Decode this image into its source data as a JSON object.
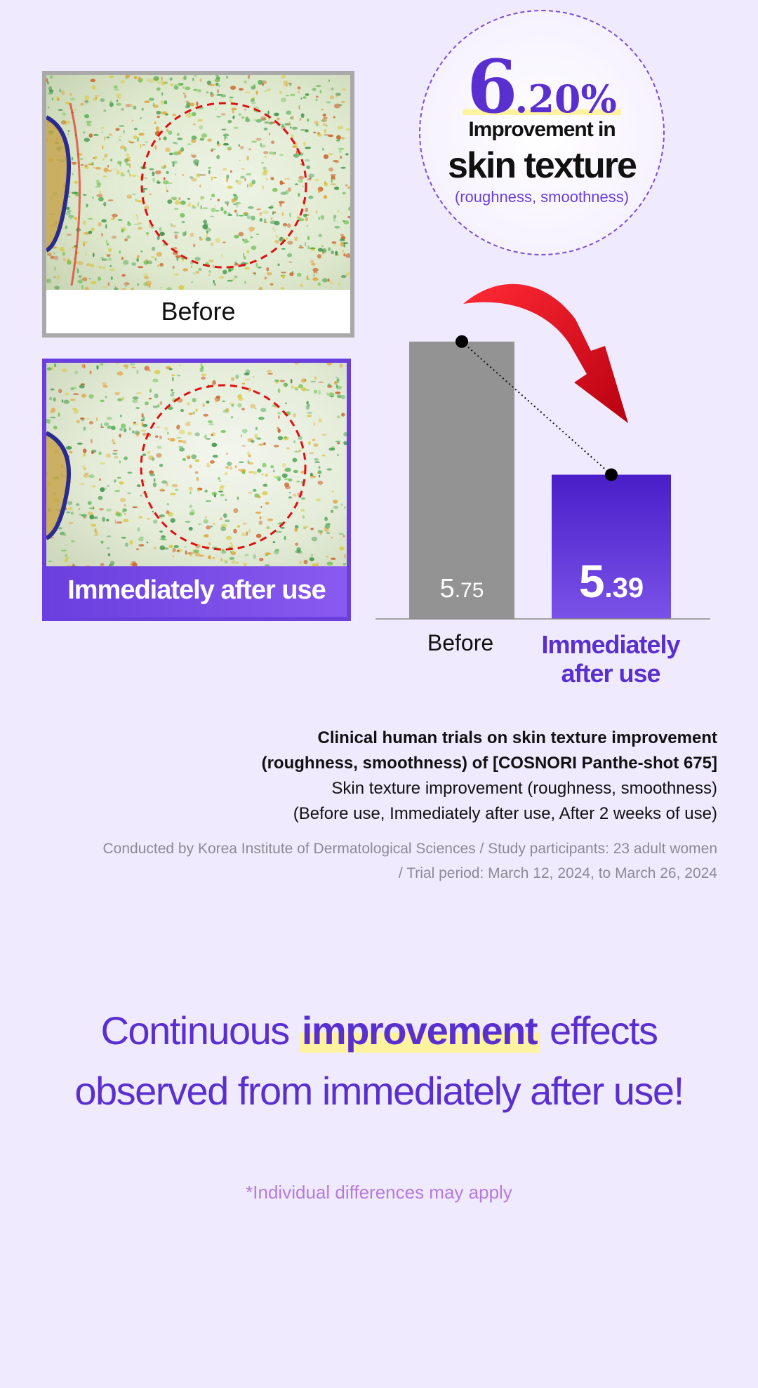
{
  "before_panel": {
    "caption": "Before"
  },
  "after_panel": {
    "caption": "Immediately after use"
  },
  "badge": {
    "number_big": "6",
    "number_small": ".20%",
    "line1": "Improvement in",
    "line2": "skin texture",
    "line3": "(roughness, smoothness)"
  },
  "chart_data": {
    "type": "bar",
    "categories": [
      "Before",
      "Immediately after use"
    ],
    "values": [
      5.75,
      5.39
    ],
    "value_labels": {
      "before": {
        "int": "5",
        "dec": ".75"
      },
      "after": {
        "int": "5",
        "dec": ".39"
      }
    },
    "xlabel_before": "Before",
    "xlabel_after_line1": "Immediately",
    "xlabel_after_line2": "after use",
    "colors": {
      "before": "#939393",
      "after": "#5a2fd0",
      "arrow": "#e0141e"
    }
  },
  "study": {
    "line1": "Clinical human trials on skin texture improvement",
    "line2": "(roughness, smoothness) of [COSNORI Panthe-shot 675]",
    "line3": "Skin texture improvement (roughness, smoothness)",
    "line4": "(Before use, Immediately after use, After 2 weeks of use)",
    "line5": "Conducted by Korea Institute of Dermatological Sciences / Study participants: 23 adult women",
    "line6": "/ Trial period: March 12, 2024, to March 26, 2024"
  },
  "headline": {
    "part1": "Continuous ",
    "highlight": "improvement",
    "part2": " effects",
    "line2": "observed from immediately after use!"
  },
  "disclaimer": "*Individual differences may apply"
}
